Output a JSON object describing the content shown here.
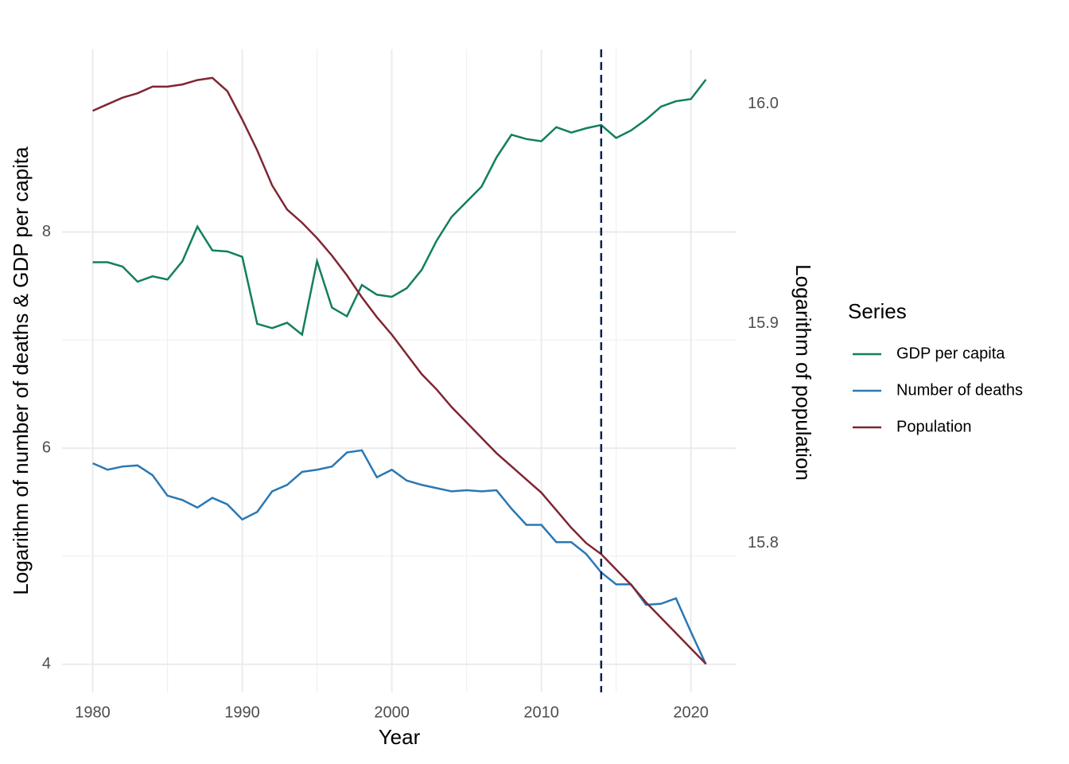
{
  "chart_data": {
    "type": "line",
    "x_label": "Year",
    "y_label": "Logarithm of number of deaths & GDP per capita",
    "y2_label": "Logarithm of population",
    "legend_title": "Series",
    "legend_position": "right",
    "grid": true,
    "xlim": [
      1977.95,
      2023.05
    ],
    "xticks": [
      1980,
      1990,
      2000,
      2010,
      2020
    ],
    "ylim": [
      3.74,
      9.69
    ],
    "yticks": [
      4,
      6,
      8
    ],
    "y2lim": [
      15.732,
      16.025
    ],
    "y2ticks": [
      {
        "value": 15.8,
        "label": "15.8"
      },
      {
        "value": 15.9,
        "label": "15.9"
      },
      {
        "value": 16.0,
        "label": "16.0"
      }
    ],
    "vline": 2014,
    "x": [
      1980,
      1981,
      1982,
      1983,
      1984,
      1985,
      1986,
      1987,
      1988,
      1989,
      1990,
      1991,
      1992,
      1993,
      1994,
      1995,
      1996,
      1997,
      1998,
      1999,
      2000,
      2001,
      2002,
      2003,
      2004,
      2005,
      2006,
      2007,
      2008,
      2009,
      2010,
      2011,
      2012,
      2013,
      2014,
      2015,
      2016,
      2017,
      2018,
      2019,
      2020,
      2021
    ],
    "series": [
      {
        "name": "GDP per capita",
        "color": "#127f5c",
        "values": [
          7.72,
          7.72,
          7.68,
          7.54,
          7.59,
          7.56,
          7.73,
          8.05,
          7.83,
          7.82,
          7.77,
          7.15,
          7.11,
          7.16,
          7.05,
          7.73,
          7.3,
          7.22,
          7.51,
          7.42,
          7.4,
          7.48,
          7.65,
          7.92,
          8.14,
          8.28,
          8.42,
          8.69,
          8.9,
          8.86,
          8.84,
          8.97,
          8.92,
          8.96,
          8.99,
          8.87,
          8.94,
          9.04,
          9.16,
          9.21,
          9.23,
          9.41
        ]
      },
      {
        "name": "Number of deaths",
        "color": "#2a78b4",
        "values": [
          5.86,
          5.8,
          5.83,
          5.84,
          5.75,
          5.56,
          5.52,
          5.45,
          5.54,
          5.48,
          5.34,
          5.41,
          5.6,
          5.66,
          5.78,
          5.8,
          5.83,
          5.96,
          5.98,
          5.73,
          5.8,
          5.7,
          5.66,
          5.63,
          5.6,
          5.61,
          5.6,
          5.61,
          5.44,
          5.29,
          5.29,
          5.13,
          5.13,
          5.02,
          4.85,
          4.74,
          4.74,
          4.55,
          4.56,
          4.61,
          4.3,
          4.0
        ]
      },
      {
        "name": "Population",
        "color": "#7f2632",
        "axis": "y2",
        "values": [
          15.997,
          16.0,
          16.003,
          16.005,
          16.008,
          16.008,
          16.009,
          16.011,
          16.012,
          16.006,
          15.993,
          15.979,
          15.963,
          15.952,
          15.946,
          15.939,
          15.931,
          15.922,
          15.912,
          15.903,
          15.895,
          15.886,
          15.877,
          15.87,
          15.862,
          15.855,
          15.848,
          15.841,
          15.835,
          15.829,
          15.823,
          15.815,
          15.807,
          15.8,
          15.795,
          15.788,
          15.781,
          15.773,
          15.766,
          15.759,
          15.752,
          15.745
        ]
      }
    ]
  }
}
